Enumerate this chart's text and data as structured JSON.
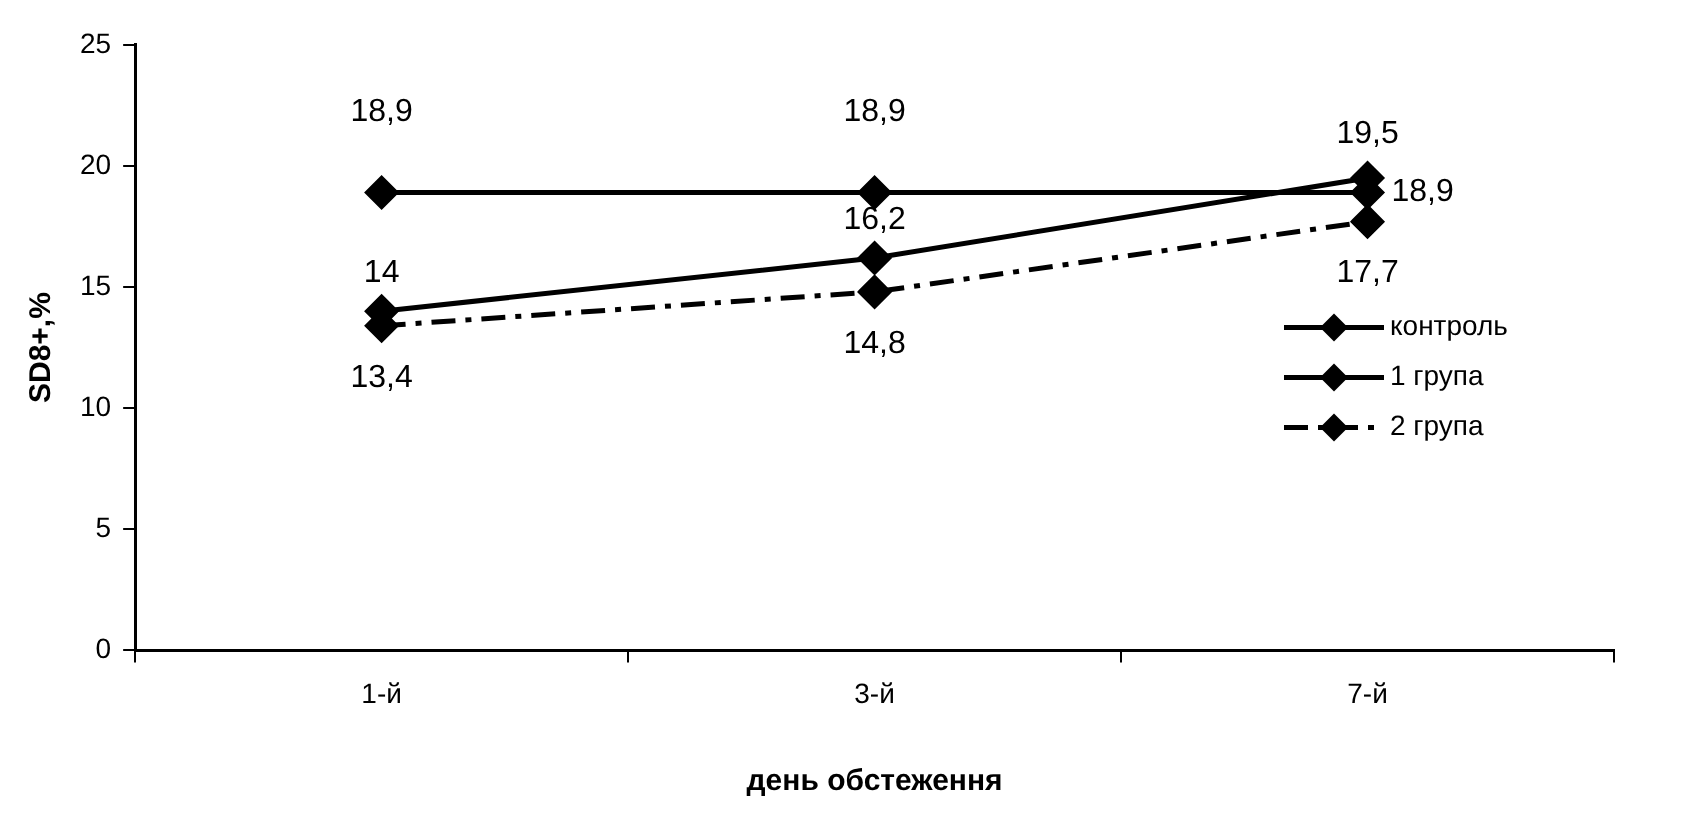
{
  "chart_data": {
    "type": "line",
    "xlabel": "день обстеження",
    "ylabel": "SD8+,%",
    "categories": [
      "1-й",
      "3-й",
      "7-й"
    ],
    "ylim": [
      0,
      25
    ],
    "yticks": [
      0,
      5,
      10,
      15,
      20,
      25
    ],
    "grid": false,
    "legend": "right",
    "marker": "diamond",
    "series": [
      {
        "name": "контроль",
        "color": "#000000",
        "values": [
          18.9,
          18.9,
          18.9
        ],
        "value_labels": [
          "18,9",
          "18,9",
          "18,9"
        ],
        "line_style": "solid"
      },
      {
        "name": "1 група",
        "color": "#000000",
        "values": [
          14,
          16.2,
          19.5
        ],
        "value_labels": [
          "14",
          "16,2",
          "19,5"
        ],
        "line_style": "solid"
      },
      {
        "name": "2 група",
        "color": "#000000",
        "values": [
          13.4,
          14.8,
          17.7
        ],
        "value_labels": [
          "13,4",
          "14,8",
          "17,7"
        ],
        "line_style": "dashed"
      }
    ]
  }
}
